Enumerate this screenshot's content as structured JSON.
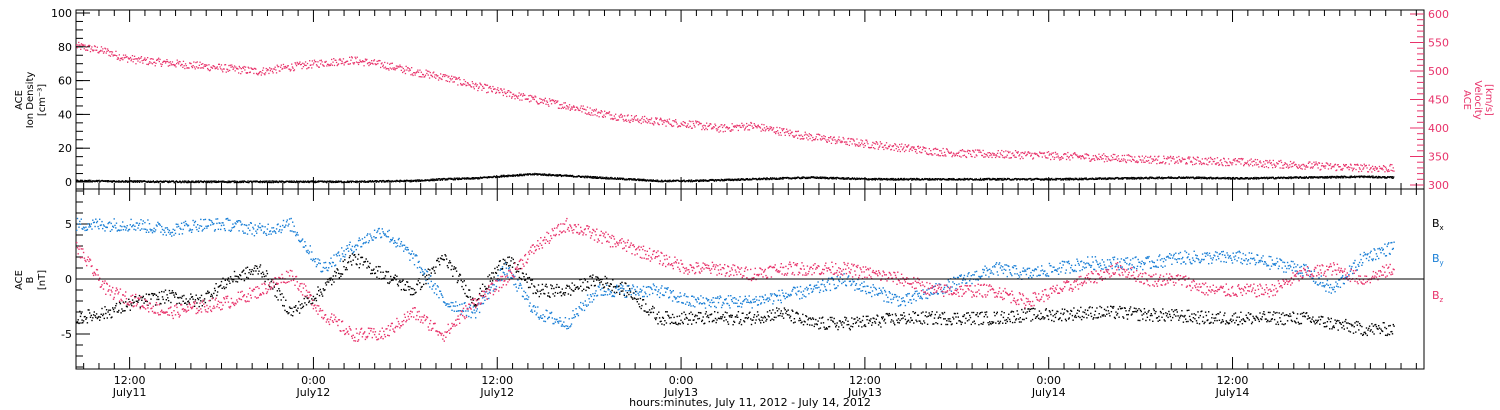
{
  "colors": {
    "black": "#000000",
    "pink": "#e8336b",
    "blue": "#1a7fd6"
  },
  "chart_data": [
    {
      "type": "scatter",
      "panel": "top",
      "ylabel_left": [
        "ACE",
        "Ion Density",
        "[cm⁻³]"
      ],
      "ylabel_right": [
        "ACE",
        "Velocity",
        "[km/s]"
      ],
      "ylim_left": [
        0,
        100
      ],
      "ylim_right": [
        300,
        600
      ],
      "left_ticks": [
        "0",
        "20",
        "40",
        "60",
        "80",
        "100"
      ],
      "right_ticks": [
        "300",
        "350",
        "400",
        "450",
        "500",
        "550",
        "600"
      ],
      "series": [
        {
          "axis": "right",
          "color": "#e8336b",
          "x": [
            0,
            1,
            2,
            3,
            4,
            6,
            8,
            10,
            12,
            14,
            16,
            18,
            20,
            22,
            24,
            26,
            28,
            30,
            32,
            34,
            36,
            38,
            40,
            42,
            44,
            46,
            48,
            50,
            52,
            54,
            56,
            58,
            60,
            62,
            64,
            66,
            68,
            70,
            72,
            74,
            76,
            78,
            80,
            82,
            84,
            86
          ],
          "y": [
            545,
            540,
            535,
            525,
            520,
            515,
            510,
            505,
            500,
            508,
            515,
            520,
            512,
            500,
            490,
            475,
            462,
            450,
            440,
            428,
            418,
            412,
            408,
            400,
            405,
            395,
            385,
            378,
            372,
            366,
            360,
            356,
            355,
            354,
            352,
            350,
            348,
            346,
            344,
            343,
            341,
            338,
            336,
            333,
            331,
            330
          ]
        },
        {
          "axis": "left",
          "color": "#000000",
          "x": [
            0,
            6,
            12,
            18,
            22,
            24,
            26,
            28,
            30,
            32,
            34,
            36,
            38,
            40,
            44,
            48,
            52,
            56,
            60,
            64,
            68,
            72,
            76,
            80,
            84,
            86
          ],
          "y": [
            1,
            0.5,
            0.5,
            0.5,
            1,
            2,
            2.5,
            4,
            5,
            4,
            3,
            2,
            1,
            1,
            2,
            3,
            2,
            2,
            2,
            2,
            2.5,
            3,
            2.5,
            3,
            3.5,
            3
          ]
        }
      ]
    },
    {
      "type": "scatter",
      "panel": "bottom",
      "ylabel": [
        "ACE",
        "B",
        "[nT]"
      ],
      "ylim": [
        -8,
        8
      ],
      "ticks": [
        "-5",
        "0",
        "5"
      ],
      "legend": [
        "B",
        "B",
        "B"
      ],
      "legend_sub": [
        "x",
        "y",
        "z"
      ],
      "series": [
        {
          "name": "Bx",
          "color": "#000000",
          "x": [
            0,
            2,
            4,
            6,
            8,
            10,
            12,
            14,
            16,
            18,
            20,
            22,
            24,
            26,
            28,
            30,
            32,
            34,
            36,
            38,
            40,
            42,
            44,
            46,
            48,
            50,
            52,
            54,
            56,
            58,
            60,
            62,
            64,
            66,
            68,
            70,
            72,
            74,
            76,
            78,
            80,
            82,
            84,
            86
          ],
          "y": [
            -3.5,
            -3,
            -2,
            -1.5,
            -2,
            0,
            1,
            -3,
            -1,
            2,
            0.5,
            -1,
            2,
            -2,
            2,
            -1,
            -1,
            0,
            -1,
            -3.5,
            -3.5,
            -3.5,
            -3.5,
            -3,
            -4,
            -4,
            -3.8,
            -3.5,
            -3.5,
            -3.5,
            -3.5,
            -3.2,
            -3.2,
            -3,
            -3,
            -3.2,
            -3.3,
            -3.5,
            -3.5,
            -3.5,
            -3.5,
            -4,
            -4.5,
            -4.5
          ]
        },
        {
          "name": "By",
          "color": "#1a7fd6",
          "x": [
            0,
            2,
            4,
            6,
            8,
            10,
            12,
            14,
            16,
            18,
            20,
            22,
            24,
            26,
            28,
            30,
            32,
            34,
            36,
            38,
            40,
            42,
            44,
            46,
            48,
            50,
            52,
            54,
            56,
            58,
            60,
            62,
            64,
            66,
            68,
            70,
            72,
            74,
            76,
            78,
            80,
            82,
            84,
            86
          ],
          "y": [
            5,
            5,
            5,
            4.5,
            5,
            5,
            4.5,
            5,
            1,
            3,
            4.5,
            2,
            -2,
            -3,
            1,
            -3,
            -4,
            -1,
            -1,
            -1,
            -2,
            -2,
            -2,
            -1.5,
            -1,
            0,
            -1,
            -2,
            -1,
            0,
            1,
            0.5,
            1,
            1.5,
            1.5,
            1.5,
            2,
            2,
            2,
            1.5,
            1,
            -1,
            2,
            3
          ]
        },
        {
          "name": "Bz",
          "color": "#e8336b",
          "x": [
            0,
            2,
            4,
            6,
            8,
            10,
            12,
            14,
            16,
            18,
            20,
            22,
            24,
            26,
            28,
            30,
            32,
            34,
            36,
            38,
            40,
            42,
            44,
            46,
            48,
            50,
            52,
            54,
            56,
            58,
            60,
            62,
            64,
            66,
            68,
            70,
            72,
            74,
            76,
            78,
            80,
            82,
            84,
            86
          ],
          "y": [
            3,
            -1,
            -2,
            -3,
            -2.5,
            -2,
            -1,
            0.5,
            -3,
            -5,
            -5,
            -3,
            -5,
            -2,
            0,
            3,
            5,
            4,
            3,
            2,
            1,
            1,
            0.5,
            1,
            1,
            1,
            0.5,
            0,
            -1,
            -1,
            -1,
            -2,
            -1,
            0,
            1,
            0,
            0,
            -1,
            -1,
            -1,
            0.5,
            1,
            0,
            1
          ]
        }
      ]
    }
  ],
  "x_axis": {
    "title": "hours:minutes, July 11, 2012 - July 14, 2012",
    "range_hours": [
      0,
      88
    ],
    "major_ticks": [
      {
        "h": 3.5,
        "time": "12:00",
        "date": "July11"
      },
      {
        "h": 15.5,
        "time": "0:00",
        "date": "July12"
      },
      {
        "h": 27.5,
        "time": "12:00",
        "date": "July12"
      },
      {
        "h": 39.5,
        "time": "0:00",
        "date": "July13"
      },
      {
        "h": 51.5,
        "time": "12:00",
        "date": "July13"
      },
      {
        "h": 63.5,
        "time": "0:00",
        "date": "July14"
      },
      {
        "h": 75.5,
        "time": "12:00",
        "date": "July14"
      }
    ]
  }
}
